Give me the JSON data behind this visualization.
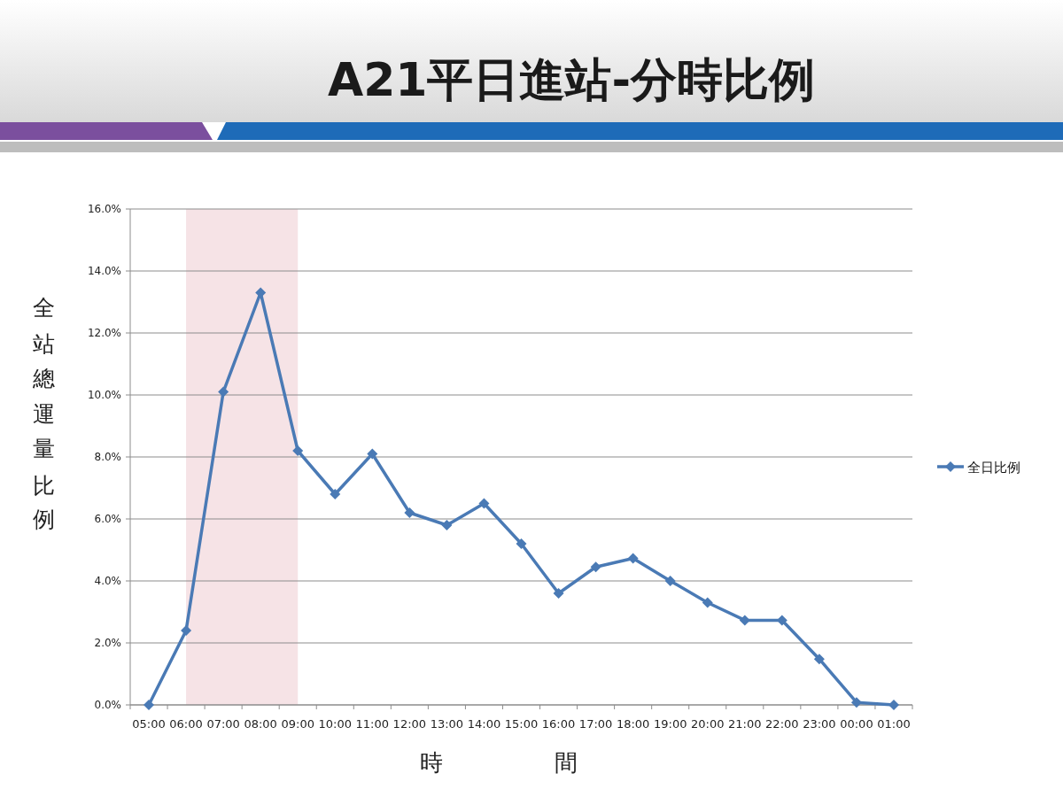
{
  "chart_data": {
    "type": "line",
    "title": "A21平日進站-分時比例",
    "xlabel": "時　間",
    "ylabel": "全站總運量比例",
    "categories": [
      "05:00",
      "06:00",
      "07:00",
      "08:00",
      "09:00",
      "10:00",
      "11:00",
      "12:00",
      "13:00",
      "14:00",
      "15:00",
      "16:00",
      "17:00",
      "18:00",
      "19:00",
      "20:00",
      "21:00",
      "22:00",
      "23:00",
      "00:00",
      "01:00"
    ],
    "series": [
      {
        "name": "全日比例",
        "color": "#4a7ab5",
        "values": [
          0.0,
          2.4,
          10.1,
          13.3,
          8.2,
          6.8,
          8.1,
          6.2,
          5.8,
          6.5,
          5.2,
          3.6,
          4.45,
          4.73,
          4.0,
          3.3,
          2.73,
          2.73,
          1.48,
          0.08,
          0.0
        ]
      }
    ],
    "ylim": [
      0,
      16
    ],
    "yticks": [
      {
        "value": 0,
        "label": "0.0%"
      },
      {
        "value": 2,
        "label": "2.0%"
      },
      {
        "value": 4,
        "label": "4.0%"
      },
      {
        "value": 6,
        "label": "6.0%"
      },
      {
        "value": 8,
        "label": "8.0%"
      },
      {
        "value": 10,
        "label": "10.0%"
      },
      {
        "value": 12,
        "label": "12.0%"
      },
      {
        "value": 14,
        "label": "14.0%"
      },
      {
        "value": 16,
        "label": "16.0%"
      }
    ],
    "grid": "y",
    "legend": "right",
    "marker": "diamond",
    "bands": [
      {
        "axis": "x",
        "from": "06:00",
        "to": "09:00",
        "color": "#f6e3e6"
      }
    ]
  }
}
